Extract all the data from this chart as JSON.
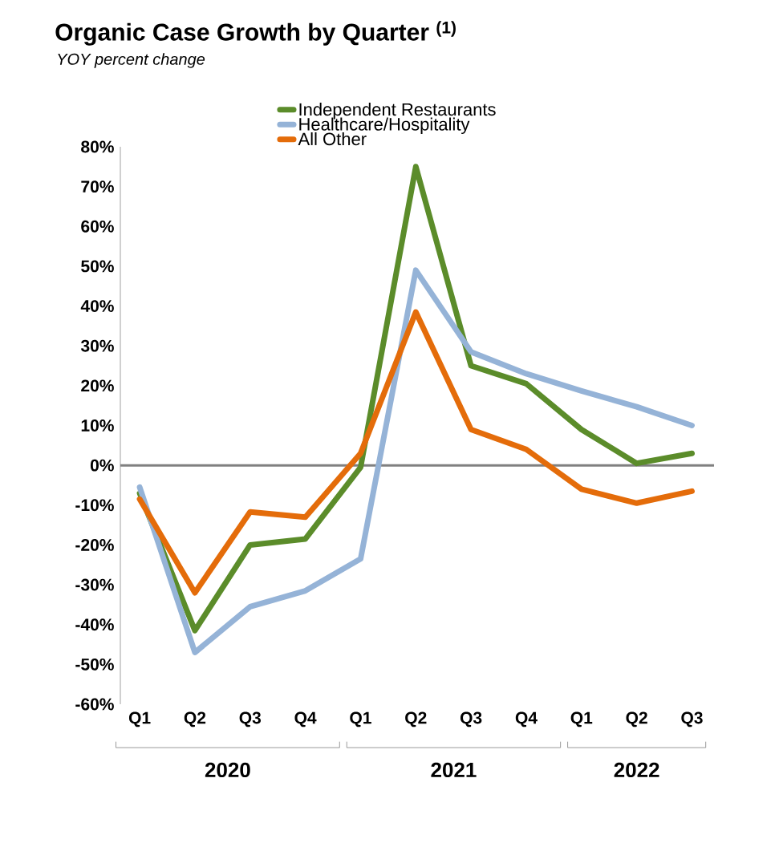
{
  "chart_data": {
    "type": "line",
    "title": "Organic Case Growth by Quarter $^{(1)}$",
    "subtitle": "YOY percent change",
    "categories": [
      "Q1",
      "Q2",
      "Q3",
      "Q4",
      "Q1",
      "Q2",
      "Q3",
      "Q4",
      "Q1",
      "Q2",
      "Q3"
    ],
    "series": [
      {
        "name": "Independent Restaurants",
        "color": "#5b8c2a",
        "values": [
          -7,
          -41.5,
          -20,
          -18.5,
          -0.5,
          75,
          25,
          20.5,
          9,
          0.5,
          3
        ]
      },
      {
        "name": "Healthcare/Hospitality",
        "color": "#95b3d7",
        "values": [
          -5.5,
          -47,
          -35.5,
          -31.5,
          -23.5,
          49,
          28.5,
          23,
          18.7,
          14.7,
          10
        ]
      },
      {
        "name": "All Other",
        "color": "#e46c0a",
        "values": [
          -8.5,
          -32,
          -11.7,
          -13,
          3,
          38.5,
          9,
          4,
          -6,
          -9.5,
          -6.5
        ]
      }
    ],
    "ylim": [
      -60,
      80
    ],
    "yticks": [
      {
        "value": -60,
        "label": "-60%"
      },
      {
        "value": -50,
        "label": "-50%"
      },
      {
        "value": -40,
        "label": "-40%"
      },
      {
        "value": -30,
        "label": "-30%"
      },
      {
        "value": -20,
        "label": "-20%"
      },
      {
        "value": -10,
        "label": "-10%"
      },
      {
        "value": 0,
        "label": "0%"
      },
      {
        "value": 10,
        "label": "10%"
      },
      {
        "value": 20,
        "label": "20%"
      },
      {
        "value": 30,
        "label": "30%"
      },
      {
        "value": 40,
        "label": "40%"
      },
      {
        "value": 50,
        "label": "50%"
      },
      {
        "value": 60,
        "label": "60%"
      },
      {
        "value": 70,
        "label": "70%"
      },
      {
        "value": 80,
        "label": "80%"
      }
    ],
    "ref_lines": [
      {
        "axis": "y",
        "value": 0,
        "color": "#808080"
      }
    ],
    "annotations": [
      "2020",
      "2021",
      "2022"
    ],
    "grid": false,
    "legend": "top",
    "marker": "none",
    "line_style": "solid"
  }
}
